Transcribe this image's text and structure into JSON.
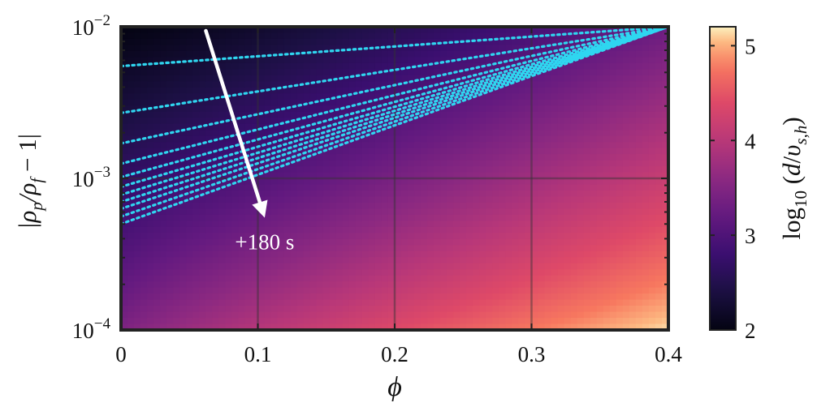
{
  "chart_data": {
    "type": "heatmap",
    "title": "",
    "xlabel": "ϕ",
    "ylabel": "|ρp/ρf − 1|",
    "x_scale": "linear",
    "y_scale": "log",
    "xlim": [
      0,
      0.4
    ],
    "ylim": [
      0.0001,
      0.01
    ],
    "grid": true,
    "x_ticks": [
      0,
      0.1,
      0.2,
      0.3,
      0.4
    ],
    "x_tick_labels": [
      "0",
      "0.1",
      "0.2",
      "0.3",
      "0.4"
    ],
    "y_ticks": [
      0.0001,
      0.001,
      0.01
    ],
    "y_tick_labels": [
      {
        "base": "10",
        "exp": "−4"
      },
      {
        "base": "10",
        "exp": "−3"
      },
      {
        "base": "10",
        "exp": "−2"
      }
    ],
    "colorbar": {
      "label": "log10 (d/υs,h)",
      "colormap": "magma",
      "range": [
        2,
        5.2
      ],
      "ticks": [
        2,
        3,
        4,
        5
      ],
      "tick_labels": [
        "2",
        "3",
        "4",
        "5"
      ]
    },
    "field_model": {
      "description": "log10(d/v_s,h) increases with ϕ and decreases with |ρp/ρf − 1|",
      "corners": {
        "x0_ymin": 3.45,
        "x04_ymin": 5.15,
        "x0_ymax": 2.0,
        "x04_ymax": 3.3
      }
    },
    "contour_lines": {
      "color": "#2fd6f0",
      "style": "dotted",
      "series": [
        {
          "x": [
            0,
            0.4
          ],
          "y": [
            0.0055,
            0.01
          ]
        },
        {
          "x": [
            0,
            0.4
          ],
          "y": [
            0.0027,
            0.01
          ]
        },
        {
          "x": [
            0,
            0.4
          ],
          "y": [
            0.0017,
            0.01
          ]
        },
        {
          "x": [
            0,
            0.4
          ],
          "y": [
            0.00125,
            0.01
          ]
        },
        {
          "x": [
            0,
            0.4
          ],
          "y": [
            0.00102,
            0.01
          ]
        },
        {
          "x": [
            0,
            0.4
          ],
          "y": [
            0.00088,
            0.01
          ]
        },
        {
          "x": [
            0,
            0.4
          ],
          "y": [
            0.00078,
            0.01
          ]
        },
        {
          "x": [
            0,
            0.4
          ],
          "y": [
            0.0007,
            0.01
          ]
        },
        {
          "x": [
            0,
            0.4
          ],
          "y": [
            0.00063,
            0.01
          ]
        },
        {
          "x": [
            0,
            0.4
          ],
          "y": [
            0.00056,
            0.01
          ]
        },
        {
          "x": [
            0,
            0.4
          ],
          "y": [
            0.0005,
            0.01
          ]
        }
      ]
    },
    "annotation": {
      "text": "+180 s",
      "arrow_from": {
        "x": 0.062,
        "y": 0.0094
      },
      "arrow_to": {
        "x": 0.105,
        "y": 0.00055
      },
      "label_at": {
        "x": 0.105,
        "y": 0.00034
      }
    }
  }
}
